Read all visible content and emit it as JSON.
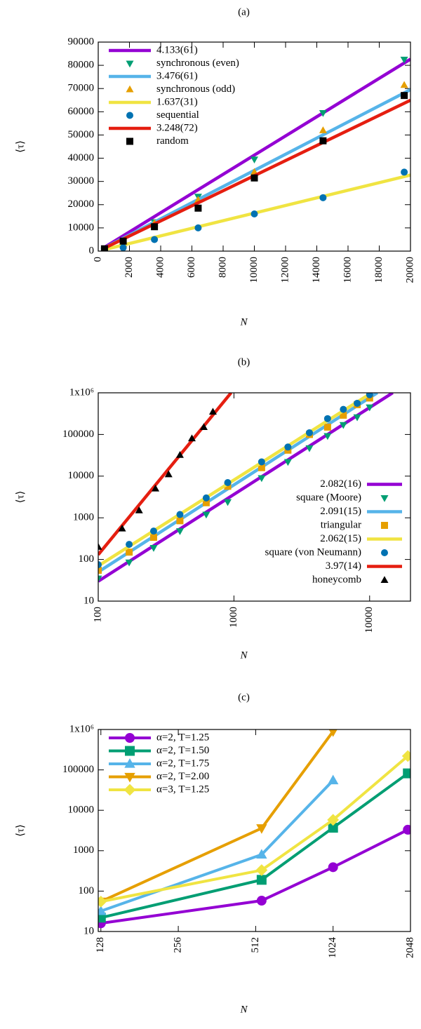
{
  "chart_data": [
    {
      "type": "line",
      "title": "(a)",
      "xlabel": "N",
      "ylabel": "⟨τ⟩",
      "xlim": [
        0,
        20000
      ],
      "xticks": [
        0,
        2000,
        4000,
        6000,
        8000,
        10000,
        12000,
        14000,
        16000,
        18000,
        20000
      ],
      "ylim": [
        0,
        90000
      ],
      "yticks": [
        0,
        10000,
        20000,
        30000,
        40000,
        50000,
        60000,
        70000,
        80000,
        90000
      ],
      "legend": "upper left",
      "series": [
        {
          "name": "4.133(61)",
          "style": "line",
          "color": "#9400d3",
          "x": [
            400,
            20000
          ],
          "values": [
            1650,
            82660
          ]
        },
        {
          "name": "synchronous (even)",
          "style": "points",
          "marker": "triangle-down",
          "color": "#009e73",
          "x": [
            400,
            1600,
            3600,
            6400,
            10000,
            14400,
            19600
          ],
          "values": [
            200,
            1500,
            12500,
            23500,
            39500,
            59500,
            82500
          ]
        },
        {
          "name": "3.476(61)",
          "style": "line",
          "color": "#56b4e9",
          "x": [
            400,
            20000
          ],
          "values": [
            1390,
            69520
          ]
        },
        {
          "name": "synchronous (odd)",
          "style": "points",
          "marker": "triangle",
          "color": "#e69f00",
          "x": [
            400,
            1600,
            3600,
            6400,
            10000,
            14400,
            19600
          ],
          "values": [
            800,
            3000,
            12000,
            22000,
            34000,
            52000,
            71500
          ]
        },
        {
          "name": "1.637(31)",
          "style": "line",
          "color": "#f0e442",
          "x": [
            400,
            20000
          ],
          "values": [
            655,
            32740
          ]
        },
        {
          "name": "sequential",
          "style": "points",
          "marker": "circle",
          "color": "#0072b2",
          "x": [
            400,
            1600,
            3600,
            6400,
            10000,
            14400,
            19600
          ],
          "values": [
            500,
            1500,
            5000,
            10000,
            16000,
            23000,
            34000
          ]
        },
        {
          "name": "3.248(72)",
          "style": "line",
          "color": "#e51e10",
          "x": [
            400,
            20000
          ],
          "values": [
            1300,
            64960
          ]
        },
        {
          "name": "random",
          "style": "points",
          "marker": "square",
          "color": "#000000",
          "x": [
            400,
            1600,
            3600,
            6400,
            10000,
            14400,
            19600
          ],
          "values": [
            1000,
            4300,
            10500,
            18500,
            31500,
            47500,
            67000
          ]
        }
      ]
    },
    {
      "type": "line",
      "title": "(b)",
      "xlabel": "N",
      "ylabel": "⟨τ⟩",
      "xlog": true,
      "ylog": true,
      "xlim": [
        100,
        20000
      ],
      "xticks": [
        100,
        1000,
        10000
      ],
      "ylim": [
        10,
        1000000
      ],
      "yticks": [
        10,
        100,
        1000,
        10000,
        100000,
        {
          "value": 1000000,
          "label": "1x10⁶"
        }
      ],
      "legend": "lower right",
      "series": [
        {
          "name": "2.082(16)",
          "style": "line",
          "color": "#9400d3",
          "x": [
            100,
            14800
          ],
          "values": [
            30,
            1000000
          ]
        },
        {
          "name": "square (Moore)",
          "style": "points",
          "marker": "triangle-down",
          "color": "#009e73",
          "x": [
            100,
            169,
            256,
            400,
            625,
            900,
            1600,
            2500,
            3600,
            4900,
            6400,
            8100,
            10000
          ],
          "values": [
            35,
            85,
            190,
            480,
            1200,
            2400,
            9000,
            22000,
            47000,
            92000,
            170000,
            260000,
            450000
          ]
        },
        {
          "name": "2.091(15)",
          "style": "line",
          "color": "#56b4e9",
          "x": [
            100,
            11400
          ],
          "values": [
            50,
            1000000
          ]
        },
        {
          "name": "triangular",
          "style": "points",
          "marker": "square",
          "color": "#e69f00",
          "x": [
            100,
            169,
            256,
            400,
            625,
            900,
            1600,
            2500,
            3600,
            4900,
            6400,
            8100,
            10000
          ],
          "values": [
            55,
            150,
            340,
            850,
            2300,
            5700,
            16000,
            42000,
            100000,
            150000,
            290000,
            520000,
            750000
          ]
        },
        {
          "name": "2.062(15)",
          "style": "line",
          "color": "#f0e442",
          "x": [
            100,
            10350
          ],
          "values": [
            70,
            1000000
          ]
        },
        {
          "name": "square (von Neumann)",
          "style": "points",
          "marker": "circle",
          "color": "#0072b2",
          "x": [
            100,
            169,
            256,
            400,
            625,
            900,
            1600,
            2500,
            3600,
            4900,
            6400,
            8100,
            10000
          ],
          "values": [
            75,
            230,
            480,
            1200,
            3000,
            7000,
            22000,
            50000,
            110000,
            240000,
            400000,
            560000,
            900000
          ]
        },
        {
          "name": "3.97(14)",
          "style": "line",
          "color": "#e51e10",
          "x": [
            100,
            953
          ],
          "values": [
            130,
            1000000
          ]
        },
        {
          "name": "honeycomb",
          "style": "points",
          "marker": "triangle",
          "color": "#000000",
          "x": [
            100,
            150,
            200,
            264,
            330,
            400,
            490,
            600,
            700
          ],
          "values": [
            200,
            550,
            1500,
            5000,
            11000,
            32000,
            80000,
            150000,
            350000
          ]
        }
      ]
    },
    {
      "type": "line",
      "title": "(c)",
      "xlabel": "N",
      "ylabel": "⟨τ⟩",
      "xlog": true,
      "ylog": true,
      "xlim": [
        125,
        2048
      ],
      "xticks": [
        128,
        256,
        512,
        1024,
        2048
      ],
      "ylim": [
        10,
        1000000
      ],
      "yticks": [
        10,
        100,
        1000,
        10000,
        100000,
        {
          "value": 1000000,
          "label": "1x10⁶"
        }
      ],
      "legend": "upper left",
      "x": [
        128,
        540,
        1024,
        2000
      ],
      "series": [
        {
          "name": "α=2, T=1.25",
          "style": "linepoints",
          "marker": "circle",
          "color": "#9400d3",
          "values": [
            16,
            58,
            390,
            3300
          ]
        },
        {
          "name": "α=2, T=1.50",
          "style": "linepoints",
          "marker": "square",
          "color": "#009e73",
          "values": [
            22,
            190,
            3700,
            82000
          ]
        },
        {
          "name": "α=2, T=1.75",
          "style": "linepoints",
          "marker": "triangle",
          "color": "#56b4e9",
          "values": [
            32,
            800,
            55000,
            null
          ]
        },
        {
          "name": "α=2, T=2.00",
          "style": "linepoints",
          "marker": "triangle-down",
          "color": "#e69f00",
          "values": [
            55,
            3600,
            900000,
            null
          ]
        },
        {
          "name": "α=3, T=1.25",
          "style": "linepoints",
          "marker": "diamond",
          "color": "#f0e442",
          "values": [
            55,
            330,
            5800,
            220000
          ]
        }
      ]
    }
  ]
}
